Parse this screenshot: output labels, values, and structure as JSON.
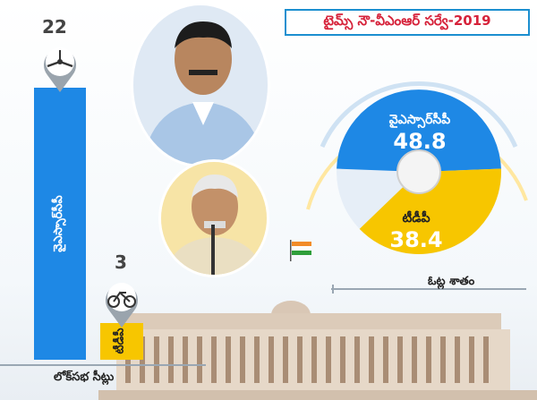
{
  "title": "టైమ్స్ నౌ-వీఎంఆర్ సర్వే-2019",
  "colors": {
    "ysrcp": "#1e88e5",
    "tdp": "#f7c600",
    "title_border": "#1c8fd0",
    "title_text": "#d6223a"
  },
  "icons": {
    "ysrcp_symbol": "ceiling-fan-icon",
    "tdp_symbol": "bicycle-icon"
  },
  "chart_data": [
    {
      "type": "bar",
      "title": "",
      "xlabel": "లోక్‌సభ సీట్లు",
      "ylabel": "",
      "categories": [
        "వైఎస్సార్‌సీపీ",
        "టీడీపీ"
      ],
      "values": [
        22,
        3
      ],
      "value_labels": [
        "22",
        "3"
      ]
    },
    {
      "type": "pie",
      "title": "",
      "label": "ఓట్ల శాతం",
      "slices": [
        {
          "name": "వైఎస్సార్‌సీపీ",
          "value": 48.8,
          "value_label": "48.8"
        },
        {
          "name": "టీడీపీ",
          "value": 38.4,
          "value_label": "38.4"
        }
      ]
    }
  ]
}
